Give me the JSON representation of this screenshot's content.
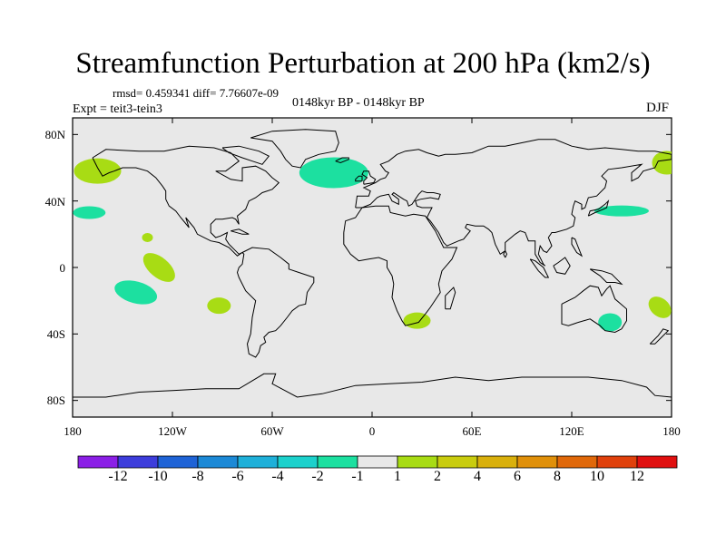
{
  "header": {
    "title": "Streamfunction Perturbation at 200 hPa (km2/s)",
    "stats": "rmsd= 0.459341 diff= 7.76607e-09",
    "experiment": "Expt = teit3-tein3",
    "period": "0148kyr BP - 0148kyr BP",
    "season": "DJF"
  },
  "map": {
    "ocean_color": "#e8e8e8",
    "coast_color": "#000000",
    "y_ticks": [
      "80N",
      "40N",
      "0",
      "40S",
      "80S"
    ],
    "x_ticks": [
      "180",
      "120W",
      "60W",
      "0",
      "60E",
      "120E",
      "180"
    ],
    "anomalies": [
      {
        "name": "north-atlantic",
        "lon": -23,
        "lat": 57,
        "class": "-2"
      },
      {
        "name": "nw-pacific-west",
        "lon": 177,
        "lat": 63,
        "class": "1"
      },
      {
        "name": "nw-pacific-east",
        "lon": -165,
        "lat": 58,
        "class": "1"
      },
      {
        "name": "ne-pacific",
        "lon": -170,
        "lat": 33,
        "class": "-2"
      },
      {
        "name": "n-pacific-west",
        "lon": 150,
        "lat": 34,
        "class": "-2"
      },
      {
        "name": "tropical-pacific-small",
        "lon": -135,
        "lat": 18,
        "class": "1"
      },
      {
        "name": "eq-pacific",
        "lon": -128,
        "lat": 0,
        "class": "1"
      },
      {
        "name": "s-pacific",
        "lon": -142,
        "lat": -15,
        "class": "-2"
      },
      {
        "name": "se-pacific",
        "lon": -92,
        "lat": -23,
        "class": "1"
      },
      {
        "name": "south-africa",
        "lon": 27,
        "lat": -32,
        "class": "1"
      },
      {
        "name": "australia",
        "lon": 143,
        "lat": -33,
        "class": "-2"
      },
      {
        "name": "tasman",
        "lon": 173,
        "lat": -24,
        "class": "1"
      }
    ]
  },
  "colorbar": {
    "colors": [
      "#8b1fe6",
      "#3d3ddb",
      "#1f63d6",
      "#1c89d6",
      "#1fb0d9",
      "#1cd1cc",
      "#1ce0a0",
      "#e8e8e8",
      "#a8dc14",
      "#c9cc0e",
      "#d9b00c",
      "#e0900a",
      "#e0680a",
      "#e0410c",
      "#e01010"
    ],
    "labels": [
      "-12",
      "-10",
      "-8",
      "-6",
      "-4",
      "-2",
      "-1",
      "1",
      "2",
      "4",
      "6",
      "8",
      "10",
      "12"
    ]
  }
}
